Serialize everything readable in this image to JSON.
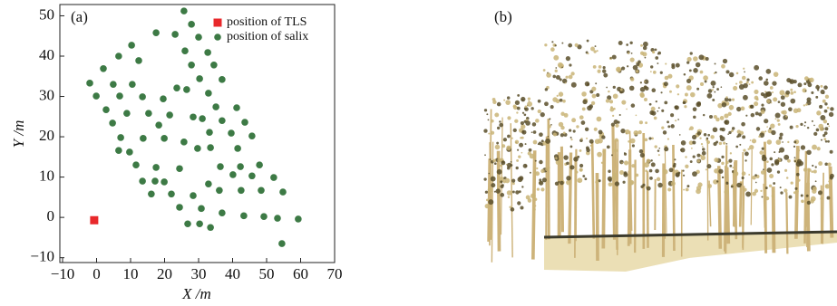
{
  "chart_data": {
    "type": "scatter",
    "panel_label": "(a)",
    "xlabel": "X /m",
    "ylabel": "Y /m",
    "xlim": [
      -10.8,
      70
    ],
    "ylim": [
      -11.2,
      52.8
    ],
    "xticks": [
      {
        "value": -10,
        "label": "−10"
      },
      0,
      10,
      20,
      30,
      40,
      50,
      60,
      70
    ],
    "yticks": [
      {
        "value": -10,
        "label": "−10"
      },
      0,
      10,
      20,
      30,
      40,
      50
    ],
    "legend": "upper right",
    "series": [
      {
        "name": "position of TLS",
        "color": "#e8282b",
        "marker": "square",
        "x": [
          -0.7
        ],
        "y": [
          -0.7
        ]
      },
      {
        "name": "position of salix",
        "color": "#3d7a45",
        "marker": "circle",
        "x": [
          25.7,
          27.9,
          17.5,
          23.1,
          30.0,
          10.3,
          6.5,
          12.4,
          26.0,
          32.7,
          2.0,
          27.9,
          34.5,
          -2.0,
          4.9,
          10.5,
          30.3,
          36.9,
          23.6,
          26.5,
          -0.1,
          6.8,
          13.5,
          19.6,
          32.9,
          2.8,
          8.9,
          15.3,
          21.5,
          28.4,
          35.1,
          41.2,
          4.7,
          18.3,
          31.1,
          36.9,
          43.6,
          7.1,
          13.7,
          19.9,
          25.7,
          33.2,
          39.6,
          45.7,
          6.5,
          29.7,
          33.5,
          41.5,
          9.7,
          11.6,
          17.5,
          24.4,
          36.4,
          42.3,
          47.9,
          13.5,
          17.2,
          19.9,
          32.9,
          40.1,
          45.7,
          52.1,
          16.1,
          22.0,
          28.4,
          36.1,
          42.5,
          48.4,
          54.8,
          24.4,
          30.8,
          36.9,
          43.3,
          49.2,
          53.2,
          59.3,
          26.8,
          30.3,
          33.5,
          54.5
        ],
        "y": [
          51.2,
          47.9,
          45.8,
          45.4,
          44.7,
          42.7,
          40.0,
          38.9,
          41.3,
          40.9,
          36.9,
          37.8,
          37.8,
          33.3,
          33.0,
          33.0,
          34.4,
          34.2,
          32.1,
          31.7,
          30.1,
          30.1,
          29.9,
          29.4,
          30.8,
          26.7,
          25.8,
          25.8,
          25.4,
          24.9,
          27.4,
          27.2,
          23.4,
          22.9,
          24.5,
          24.0,
          23.6,
          19.8,
          19.6,
          19.6,
          18.7,
          21.1,
          20.9,
          20.2,
          16.6,
          17.1,
          17.3,
          17.1,
          16.2,
          13.0,
          12.4,
          12.1,
          12.6,
          12.6,
          13.0,
          9.0,
          9.0,
          8.8,
          8.3,
          10.6,
          10.3,
          9.9,
          5.8,
          5.8,
          5.4,
          6.7,
          6.7,
          6.7,
          6.3,
          2.5,
          2.2,
          1.1,
          0.4,
          0.2,
          -0.2,
          -0.4,
          -1.6,
          -1.6,
          -2.5,
          -6.5
        ]
      }
    ]
  },
  "panel_b": {
    "label": "(b)"
  }
}
